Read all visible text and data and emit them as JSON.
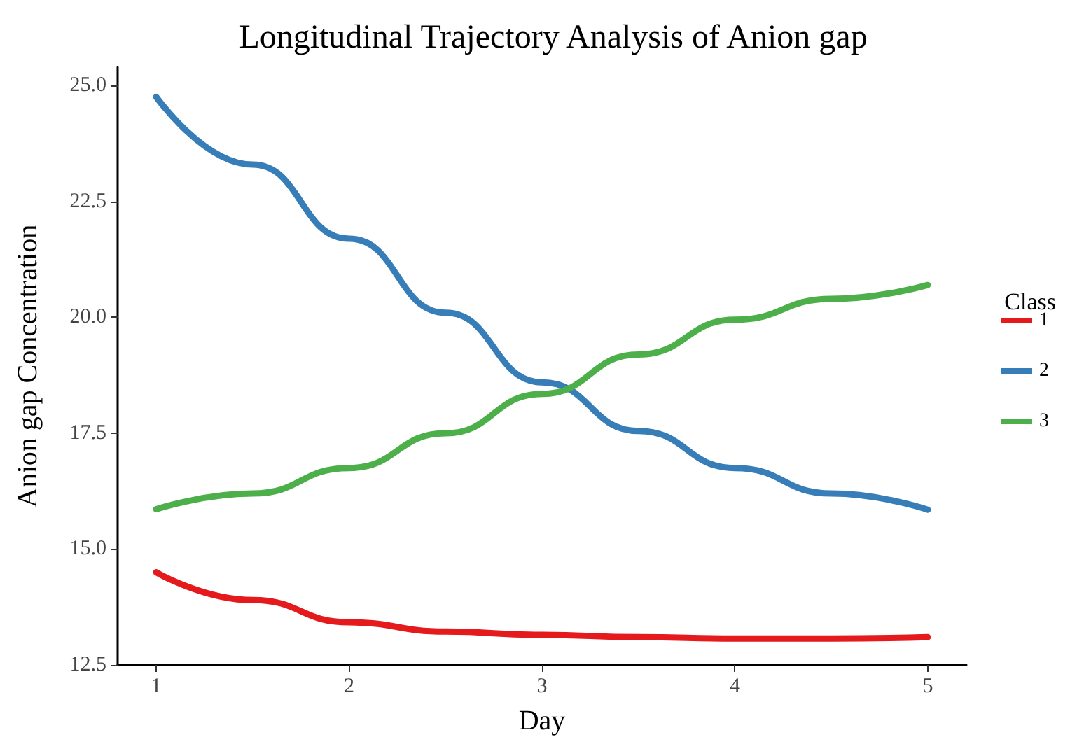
{
  "chart_data": {
    "type": "line",
    "title": "Longitudinal Trajectory Analysis of Anion gap",
    "xlabel": "Day",
    "ylabel": "Anion gap Concentration",
    "legend_title": "Class",
    "x": [
      1,
      1.5,
      2,
      2.5,
      3,
      3.5,
      4,
      4.5,
      5
    ],
    "series": [
      {
        "name": "1",
        "color": "#e41a1c",
        "values": [
          14.5,
          13.9,
          13.42,
          13.22,
          13.15,
          13.1,
          13.07,
          13.07,
          13.1
        ]
      },
      {
        "name": "2",
        "color": "#377eb8",
        "values": [
          24.76,
          23.3,
          21.7,
          20.1,
          18.6,
          17.55,
          16.75,
          16.2,
          15.85
        ]
      },
      {
        "name": "3",
        "color": "#4daf4a",
        "values": [
          15.86,
          16.2,
          16.75,
          17.5,
          18.35,
          19.2,
          19.95,
          20.4,
          20.7
        ]
      }
    ],
    "xlim": [
      0.8,
      5.2
    ],
    "xticks": [
      1,
      2,
      3,
      4,
      5
    ],
    "ylim": [
      12.5,
      25.4
    ],
    "yticks": [
      {
        "value": 12.5,
        "label": "12.5"
      },
      {
        "value": 15,
        "label": "15.0"
      },
      {
        "value": 17.5,
        "label": "17.5"
      },
      {
        "value": 20,
        "label": "20.0"
      },
      {
        "value": 22.5,
        "label": "22.5"
      },
      {
        "value": 25,
        "label": "25.0"
      }
    ],
    "grid": false,
    "legend": "right",
    "marker": "none",
    "line_style": "solid"
  }
}
